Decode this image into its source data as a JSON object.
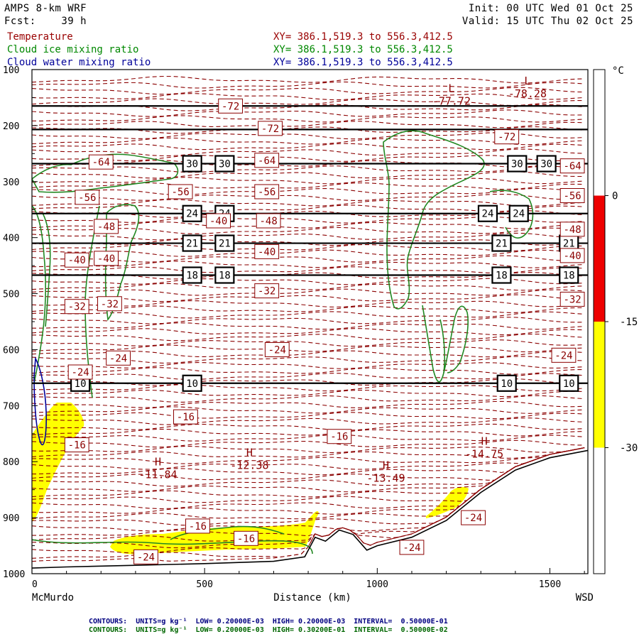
{
  "header": {
    "model": "AMPS 8-km WRF",
    "forecast_label": "Fcst:",
    "forecast_hours": "39 h",
    "init": "Init: 00 UTC Wed 01 Oct 25",
    "valid": "Valid: 15 UTC Thu 02 Oct 25"
  },
  "variables": [
    {
      "name": "Temperature",
      "xy": "XY= 386.1,519.3 to 556.3,412.5",
      "color": "#990000"
    },
    {
      "name": "Cloud ice mixing ratio",
      "xy": "XY= 386.1,519.3 to 556.3,412.5",
      "color": "#008800"
    },
    {
      "name": "Cloud water mixing ratio",
      "xy": "XY= 386.1,519.3 to 556.3,412.5",
      "color": "#000099"
    }
  ],
  "colorbar": {
    "unit": "°C",
    "ticks": [
      "0",
      "-15",
      "-30"
    ],
    "segments": [
      {
        "from": 15,
        "to": 0,
        "color": "#ffffff"
      },
      {
        "from": 0,
        "to": -15,
        "color": "#ee0000"
      },
      {
        "from": -15,
        "to": -30,
        "color": "#ffff00"
      },
      {
        "from": -30,
        "to": -45,
        "color": "#ffffff"
      }
    ]
  },
  "footer": [
    {
      "text": "CONTOURS:  UNITS=g kg⁻¹  LOW= 0.20000E-03  HIGH= 0.20000E-03  INTERVAL=  0.50000E-01",
      "color": "#000080"
    },
    {
      "text": "CONTOURS:  UNITS=g kg⁻¹  LOW= 0.20000E-03  HIGH= 0.30200E-01  INTERVAL=  0.50000E-02",
      "color": "#006600"
    }
  ],
  "chart_data": {
    "type": "cross-section",
    "xlabel": "Distance (km)",
    "x_start_label": "McMurdo",
    "x_end_label": "WSD",
    "xlim": [
      0,
      1610
    ],
    "xticks": [
      0,
      500,
      1000,
      1500
    ],
    "ylim": [
      100,
      1000
    ],
    "yticks": [
      100,
      200,
      300,
      400,
      500,
      600,
      700,
      800,
      900,
      1000
    ],
    "reference_lines": [
      {
        "p": 165,
        "label": ""
      },
      {
        "p": 207,
        "label": ""
      },
      {
        "p": 268,
        "label": "30",
        "label_x": [
          464,
          558,
          1405,
          1490
        ]
      },
      {
        "p": 357,
        "label": "24",
        "label_x": [
          464,
          558,
          1320,
          1410
        ]
      },
      {
        "p": 410,
        "label": "21",
        "label_x": [
          464,
          558,
          1360,
          1555
        ]
      },
      {
        "p": 467,
        "label": "18",
        "label_x": [
          464,
          558,
          1360,
          1555
        ]
      },
      {
        "p": 660,
        "label": "10",
        "label_x": [
          140,
          464,
          1375,
          1555
        ]
      }
    ],
    "temperature_labels": [
      {
        "x": 575,
        "p": 165,
        "v": "-72"
      },
      {
        "x": 690,
        "p": 205,
        "v": "-72"
      },
      {
        "x": 1375,
        "p": 220,
        "v": "-72"
      },
      {
        "x": 200,
        "p": 265,
        "v": "-64"
      },
      {
        "x": 680,
        "p": 262,
        "v": "-64"
      },
      {
        "x": 1565,
        "p": 272,
        "v": "-64"
      },
      {
        "x": 160,
        "p": 328,
        "v": "-56"
      },
      {
        "x": 430,
        "p": 318,
        "v": "-56"
      },
      {
        "x": 680,
        "p": 318,
        "v": "-56"
      },
      {
        "x": 1565,
        "p": 325,
        "v": "-56"
      },
      {
        "x": 215,
        "p": 380,
        "v": "-48"
      },
      {
        "x": 685,
        "p": 370,
        "v": "-48"
      },
      {
        "x": 1565,
        "p": 385,
        "v": "-48"
      },
      {
        "x": 540,
        "p": 370,
        "v": "-40"
      },
      {
        "x": 130,
        "p": 440,
        "v": "-40"
      },
      {
        "x": 215,
        "p": 437,
        "v": "-40"
      },
      {
        "x": 680,
        "p": 425,
        "v": "-40"
      },
      {
        "x": 1565,
        "p": 432,
        "v": "-40"
      },
      {
        "x": 130,
        "p": 523,
        "v": "-32"
      },
      {
        "x": 225,
        "p": 518,
        "v": "-32"
      },
      {
        "x": 680,
        "p": 495,
        "v": "-32"
      },
      {
        "x": 1565,
        "p": 510,
        "v": "-32"
      },
      {
        "x": 250,
        "p": 615,
        "v": "-24"
      },
      {
        "x": 140,
        "p": 640,
        "v": "-24"
      },
      {
        "x": 710,
        "p": 600,
        "v": "-24"
      },
      {
        "x": 1540,
        "p": 610,
        "v": "-24"
      },
      {
        "x": 445,
        "p": 720,
        "v": "-16"
      },
      {
        "x": 130,
        "p": 770,
        "v": "-16"
      },
      {
        "x": 890,
        "p": 755,
        "v": "-16"
      },
      {
        "x": 480,
        "p": 915,
        "v": "-16"
      },
      {
        "x": 620,
        "p": 937,
        "v": "-16"
      },
      {
        "x": 330,
        "p": 970,
        "v": "-24"
      },
      {
        "x": 1100,
        "p": 953,
        "v": "-24"
      },
      {
        "x": 1278,
        "p": 900,
        "v": "-24"
      }
    ],
    "extrema": [
      {
        "kind": "L",
        "x": 1215,
        "p": 145,
        "value": "-77.72"
      },
      {
        "kind": "L",
        "x": 1435,
        "p": 132,
        "value": "-78.28"
      },
      {
        "kind": "H",
        "x": 365,
        "p": 812,
        "value": "-11.84"
      },
      {
        "kind": "H",
        "x": 630,
        "p": 795,
        "value": "-12.38"
      },
      {
        "kind": "H",
        "x": 1025,
        "p": 818,
        "value": "-13.49"
      },
      {
        "kind": "H",
        "x": 1310,
        "p": 775,
        "value": "-14.75"
      }
    ],
    "terrain": [
      [
        0,
        990
      ],
      [
        100,
        988
      ],
      [
        300,
        985
      ],
      [
        500,
        982
      ],
      [
        700,
        978
      ],
      [
        790,
        970
      ],
      [
        820,
        935
      ],
      [
        850,
        942
      ],
      [
        890,
        922
      ],
      [
        930,
        930
      ],
      [
        970,
        958
      ],
      [
        1000,
        950
      ],
      [
        1100,
        935
      ],
      [
        1200,
        905
      ],
      [
        1300,
        855
      ],
      [
        1400,
        815
      ],
      [
        1500,
        793
      ],
      [
        1610,
        780
      ]
    ]
  }
}
